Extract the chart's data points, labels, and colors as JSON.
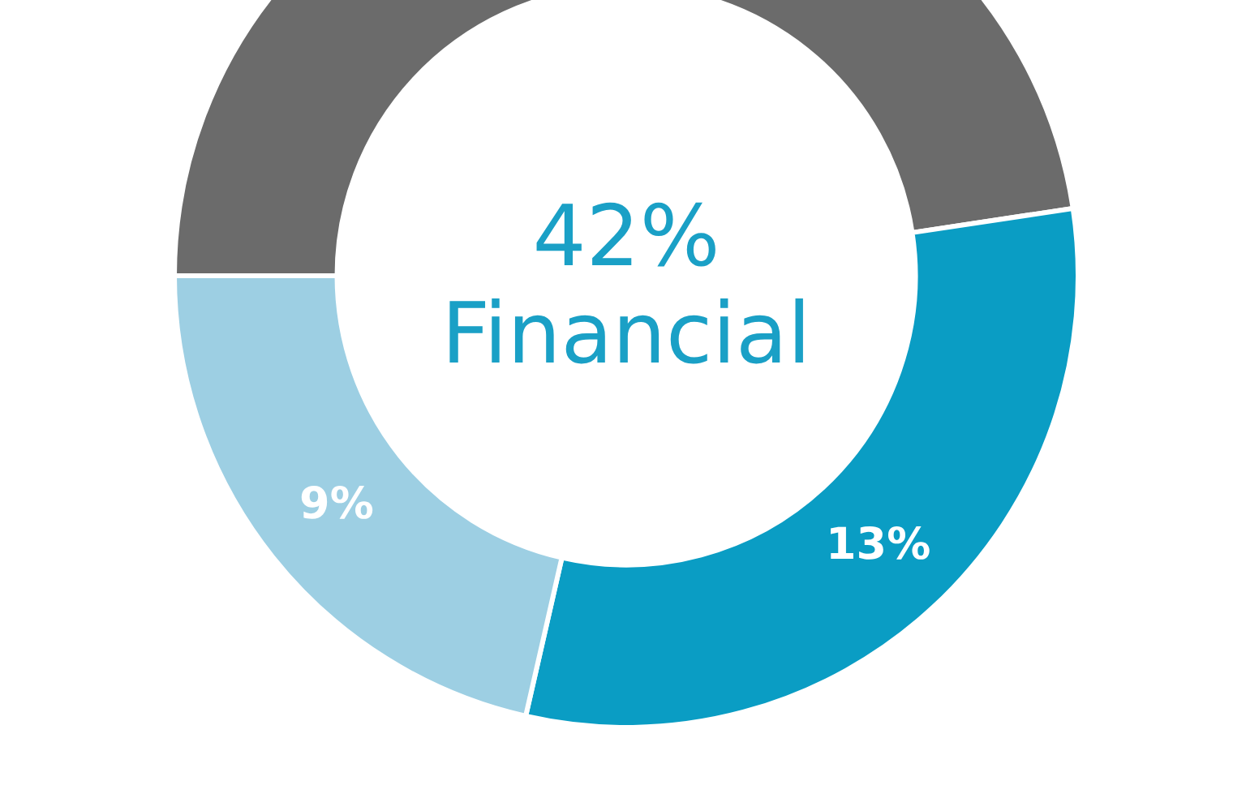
{
  "chart_data": {
    "type": "donut",
    "categories": [
      null,
      null,
      null
    ],
    "values": [
      20,
      13,
      9
    ],
    "value_labels": [
      null,
      "13%",
      "9%"
    ],
    "colors": [
      "#6b6b6b",
      "#0a9dc4",
      "#9dcfe3"
    ],
    "annotations": [
      "42%",
      "Financial"
    ],
    "legend": false
  }
}
